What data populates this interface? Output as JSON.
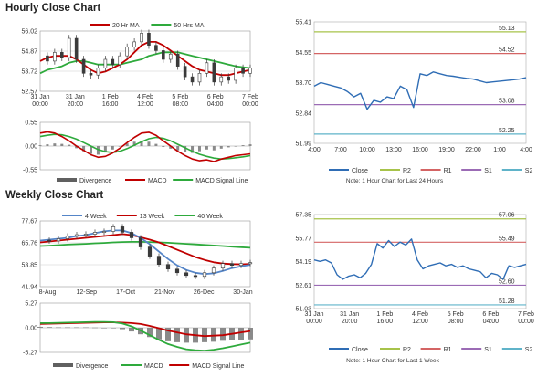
{
  "colors": {
    "ma20": "#c00000",
    "ma50": "#2eaa3c",
    "price": "#3a3a3a",
    "macd": "#c00000",
    "signal": "#2eaa3c",
    "wk4": "#5585c8",
    "wk13": "#c00000",
    "wk40": "#2eaa3c",
    "close": "#2f6db5",
    "r2": "#a7c34a",
    "r1": "#d46464",
    "s1": "#9b6bb5",
    "s2": "#5fb3c9",
    "divergence": "#606060",
    "grid": "#cccccc"
  },
  "hourly": {
    "section_title": "Hourly Close Chart",
    "price": {
      "legend": [
        {
          "label": "20 Hr MA",
          "color": "#c00000"
        },
        {
          "label": "50 Hrs MA",
          "color": "#2eaa3c"
        }
      ],
      "yticks": [
        "56.02",
        "54.87",
        "53.72",
        "52.57"
      ],
      "xticks": [
        [
          "31 Jan",
          "00:00"
        ],
        [
          "31 Jan",
          "20:00"
        ],
        [
          "1 Feb",
          "16:00"
        ],
        [
          "4 Feb",
          "12:00"
        ],
        [
          "5 Feb",
          "08:00"
        ],
        [
          "6 Feb",
          "04:00"
        ],
        [
          "7 Feb",
          "00:00"
        ]
      ]
    },
    "macd": {
      "yticks": [
        "0.55",
        "0.00",
        "-0.55"
      ],
      "legend": [
        {
          "label": "Divergence",
          "kind": "bar"
        },
        {
          "label": "MACD",
          "color": "#c00000"
        },
        {
          "label": "MACD Signal Line",
          "color": "#2eaa3c"
        }
      ]
    },
    "levels": {
      "labels": {
        "r2": "55.13",
        "r1": "54.52",
        "s1": "53.08",
        "s2": "52.25"
      },
      "yticks": [
        "55.41",
        "54.55",
        "53.70",
        "52.84",
        "51.99"
      ],
      "xticks": [
        "4:00",
        "7:00",
        "10:00",
        "13:00",
        "16:00",
        "19:00",
        "22:00",
        "1:00",
        "4:00"
      ],
      "legend": [
        {
          "label": "Close",
          "color": "#2f6db5"
        },
        {
          "label": "R2",
          "color": "#a7c34a"
        },
        {
          "label": "R1",
          "color": "#d46464"
        },
        {
          "label": "S1",
          "color": "#9b6bb5"
        },
        {
          "label": "S2",
          "color": "#5fb3c9"
        }
      ],
      "note": "Note: 1 Hour Chart for Last 24 Hours"
    }
  },
  "weekly": {
    "section_title": "Weekly Close Chart",
    "price": {
      "legend": [
        {
          "label": "4 Week",
          "color": "#5585c8"
        },
        {
          "label": "13 Week",
          "color": "#c00000"
        },
        {
          "label": "40 Week",
          "color": "#2eaa3c"
        }
      ],
      "yticks": [
        "77.67",
        "65.76",
        "53.85",
        "41.94"
      ],
      "xticks": [
        "8-Aug",
        "12-Sep",
        "17-Oct",
        "21-Nov",
        "26-Dec",
        "30-Jan"
      ]
    },
    "macd": {
      "yticks": [
        "5.27",
        "0.00",
        "-5.27"
      ],
      "legend": [
        {
          "label": "Divergence",
          "kind": "bar"
        },
        {
          "label": "MACD",
          "color": "#2eaa3c"
        },
        {
          "label": "MACD Signal Line",
          "color": "#c00000"
        }
      ]
    },
    "levels": {
      "labels": {
        "r2": "57.06",
        "r1": "55.49",
        "s1": "52.60",
        "s2": "51.28"
      },
      "yticks": [
        "57.35",
        "55.77",
        "54.19",
        "52.61",
        "51.03"
      ],
      "xticks": [
        [
          "31 Jan",
          "00:00"
        ],
        [
          "31 Jan",
          "20:00"
        ],
        [
          "1 Feb",
          "16:00"
        ],
        [
          "4 Feb",
          "12:00"
        ],
        [
          "5 Feb",
          "08:00"
        ],
        [
          "6 Feb",
          "04:00"
        ],
        [
          "7 Feb",
          "00:00"
        ]
      ],
      "legend": [
        {
          "label": "Close",
          "color": "#2f6db5"
        },
        {
          "label": "R2",
          "color": "#a7c34a"
        },
        {
          "label": "R1",
          "color": "#d46464"
        },
        {
          "label": "S1",
          "color": "#9b6bb5"
        },
        {
          "label": "S2",
          "color": "#5fb3c9"
        }
      ],
      "note": "Note: 1 Hour Chart for Last 1 Week"
    }
  },
  "chart_data": [
    {
      "id": "hourly-price",
      "type": "line",
      "ylim": [
        52.57,
        56.02
      ],
      "series": [
        {
          "name": "Close",
          "values": [
            54.6,
            54.3,
            54.8,
            54.5,
            55.6,
            54.4,
            53.6,
            53.5,
            53.9,
            54.4,
            54.1,
            54.6,
            55.1,
            55.4,
            55.9,
            55.2,
            54.9,
            54.4,
            54.7,
            54.0,
            53.4,
            53.1,
            53.6,
            54.2,
            53.1,
            53.4,
            53.2,
            53.9,
            53.6,
            53.9
          ]
        },
        {
          "name": "20 Hr MA",
          "values": [
            54.3,
            54.5,
            54.6,
            54.6,
            54.6,
            54.4,
            54.1,
            53.8,
            53.6,
            53.7,
            53.9,
            54.1,
            54.4,
            54.8,
            55.2,
            55.4,
            55.4,
            55.2,
            54.9,
            54.6,
            54.3,
            54.0,
            53.8,
            53.7,
            53.6,
            53.5,
            53.5,
            53.6,
            53.7,
            53.8
          ]
        },
        {
          "name": "50 Hrs MA",
          "values": [
            53.6,
            53.8,
            53.9,
            54.0,
            54.2,
            54.3,
            54.3,
            54.2,
            54.1,
            54.1,
            54.1,
            54.1,
            54.2,
            54.3,
            54.4,
            54.6,
            54.7,
            54.8,
            54.8,
            54.8,
            54.7,
            54.6,
            54.5,
            54.4,
            54.3,
            54.2,
            54.1,
            54.0,
            53.95,
            53.9
          ]
        }
      ]
    },
    {
      "id": "hourly-macd",
      "type": "line",
      "ylim": [
        -0.55,
        0.55
      ],
      "series": [
        {
          "name": "Divergence",
          "values": [
            0.02,
            0.04,
            0.06,
            0.05,
            0.03,
            -0.05,
            -0.12,
            -0.18,
            -0.2,
            -0.15,
            -0.08,
            0.0,
            0.06,
            0.1,
            0.12,
            0.1,
            0.05,
            -0.02,
            -0.06,
            -0.1,
            -0.14,
            -0.16,
            -0.12,
            -0.08,
            -0.1,
            -0.06,
            -0.03,
            0.0,
            0.02,
            0.04
          ]
        },
        {
          "name": "MACD",
          "values": [
            0.3,
            0.33,
            0.3,
            0.22,
            0.12,
            0.0,
            -0.1,
            -0.2,
            -0.26,
            -0.24,
            -0.16,
            -0.05,
            0.08,
            0.2,
            0.3,
            0.32,
            0.25,
            0.12,
            0.0,
            -0.12,
            -0.22,
            -0.3,
            -0.34,
            -0.32,
            -0.36,
            -0.3,
            -0.26,
            -0.22,
            -0.2,
            -0.18
          ]
        },
        {
          "name": "MACD Signal Line",
          "values": [
            0.22,
            0.25,
            0.27,
            0.26,
            0.22,
            0.16,
            0.08,
            0.0,
            -0.08,
            -0.13,
            -0.15,
            -0.12,
            -0.06,
            0.02,
            0.1,
            0.17,
            0.2,
            0.18,
            0.12,
            0.04,
            -0.04,
            -0.12,
            -0.19,
            -0.24,
            -0.28,
            -0.3,
            -0.29,
            -0.27,
            -0.25,
            -0.22
          ]
        }
      ]
    },
    {
      "id": "hourly-levels",
      "type": "line",
      "ylim": [
        51.99,
        55.41
      ],
      "series": [
        {
          "name": "Close",
          "values": [
            53.6,
            53.7,
            53.65,
            53.6,
            53.55,
            53.45,
            53.3,
            53.4,
            52.95,
            53.2,
            53.15,
            53.3,
            53.25,
            53.6,
            53.5,
            53.0,
            53.95,
            53.9,
            54.0,
            53.95,
            53.9,
            53.88,
            53.85,
            53.82,
            53.8,
            53.75,
            53.7,
            53.72,
            53.74,
            53.76,
            53.78,
            53.8,
            53.84
          ]
        },
        {
          "name": "R2",
          "values": [
            55.13
          ]
        },
        {
          "name": "R1",
          "values": [
            54.52
          ]
        },
        {
          "name": "S1",
          "values": [
            53.08
          ]
        },
        {
          "name": "S2",
          "values": [
            52.25
          ]
        }
      ]
    },
    {
      "id": "weekly-price",
      "type": "line",
      "ylim": [
        41.94,
        77.67
      ],
      "series": [
        {
          "name": "Close",
          "values": [
            67.2,
            66.8,
            68.0,
            69.5,
            70.2,
            70.5,
            71.5,
            72.0,
            74.5,
            71.5,
            68.5,
            63.5,
            58.5,
            54.0,
            51.5,
            49.5,
            48.0,
            47.5,
            49.5,
            52.0,
            54.5,
            53.5,
            54.5,
            55.0
          ]
        },
        {
          "name": "4 Week",
          "values": [
            67.0,
            67.5,
            68.0,
            68.5,
            69.5,
            70.0,
            71.0,
            72.0,
            72.5,
            72.5,
            71.0,
            68.5,
            65.0,
            61.0,
            57.0,
            53.5,
            51.0,
            49.5,
            48.8,
            49.2,
            50.5,
            52.0,
            53.0,
            53.8
          ]
        },
        {
          "name": "13 Week",
          "values": [
            66.0,
            66.5,
            67.0,
            67.5,
            68.0,
            68.5,
            69.0,
            69.5,
            70.0,
            70.5,
            70.0,
            68.8,
            67.5,
            66.0,
            64.0,
            62.0,
            60.0,
            58.0,
            56.5,
            55.2,
            54.5,
            54.2,
            54.1,
            54.3
          ]
        },
        {
          "name": "40 Week",
          "values": [
            64.0,
            64.2,
            64.5,
            64.8,
            65.0,
            65.2,
            65.5,
            65.7,
            66.0,
            66.2,
            66.3,
            66.3,
            66.2,
            66.0,
            65.8,
            65.5,
            65.2,
            64.9,
            64.6,
            64.3,
            64.0,
            63.7,
            63.4,
            63.1
          ]
        }
      ]
    },
    {
      "id": "weekly-macd",
      "type": "line",
      "ylim": [
        -5.27,
        5.27
      ],
      "series": [
        {
          "name": "Divergence",
          "values": [
            0.2,
            0.15,
            0.1,
            0.1,
            0.1,
            0.1,
            0.05,
            0.0,
            0.0,
            -0.3,
            -0.8,
            -1.4,
            -2.0,
            -2.5,
            -2.9,
            -3.1,
            -3.2,
            -3.2,
            -3.1,
            -3.0,
            -2.8,
            -2.7,
            -2.6,
            -2.5
          ]
        },
        {
          "name": "MACD",
          "values": [
            1.0,
            1.0,
            1.05,
            1.1,
            1.15,
            1.2,
            1.25,
            1.25,
            1.2,
            0.9,
            0.3,
            -0.6,
            -1.6,
            -2.6,
            -3.5,
            -4.1,
            -4.6,
            -4.8,
            -4.9,
            -4.7,
            -4.4,
            -4.0,
            -3.6,
            -3.2
          ]
        },
        {
          "name": "MACD Signal Line",
          "values": [
            0.8,
            0.85,
            0.9,
            0.95,
            1.0,
            1.05,
            1.1,
            1.15,
            1.15,
            1.1,
            1.0,
            0.8,
            0.4,
            -0.1,
            -0.6,
            -1.0,
            -1.4,
            -1.6,
            -1.8,
            -1.7,
            -1.6,
            -1.3,
            -1.0,
            -0.7
          ]
        }
      ]
    },
    {
      "id": "weekly-levels",
      "type": "line",
      "ylim": [
        51.03,
        57.35
      ],
      "series": [
        {
          "name": "Close",
          "values": [
            54.3,
            54.2,
            54.3,
            54.1,
            53.3,
            53.0,
            53.2,
            53.3,
            53.1,
            53.4,
            54.0,
            55.4,
            55.1,
            55.6,
            55.2,
            55.5,
            55.3,
            55.7,
            54.3,
            53.7,
            53.9,
            54.0,
            54.1,
            53.9,
            54.0,
            53.8,
            53.9,
            53.7,
            53.6,
            53.5,
            53.1,
            53.4,
            53.3,
            53.0,
            53.9,
            53.8,
            53.9,
            54.0
          ]
        },
        {
          "name": "R2",
          "values": [
            57.06
          ]
        },
        {
          "name": "R1",
          "values": [
            55.49
          ]
        },
        {
          "name": "S1",
          "values": [
            52.6
          ]
        },
        {
          "name": "S2",
          "values": [
            51.28
          ]
        }
      ]
    }
  ]
}
